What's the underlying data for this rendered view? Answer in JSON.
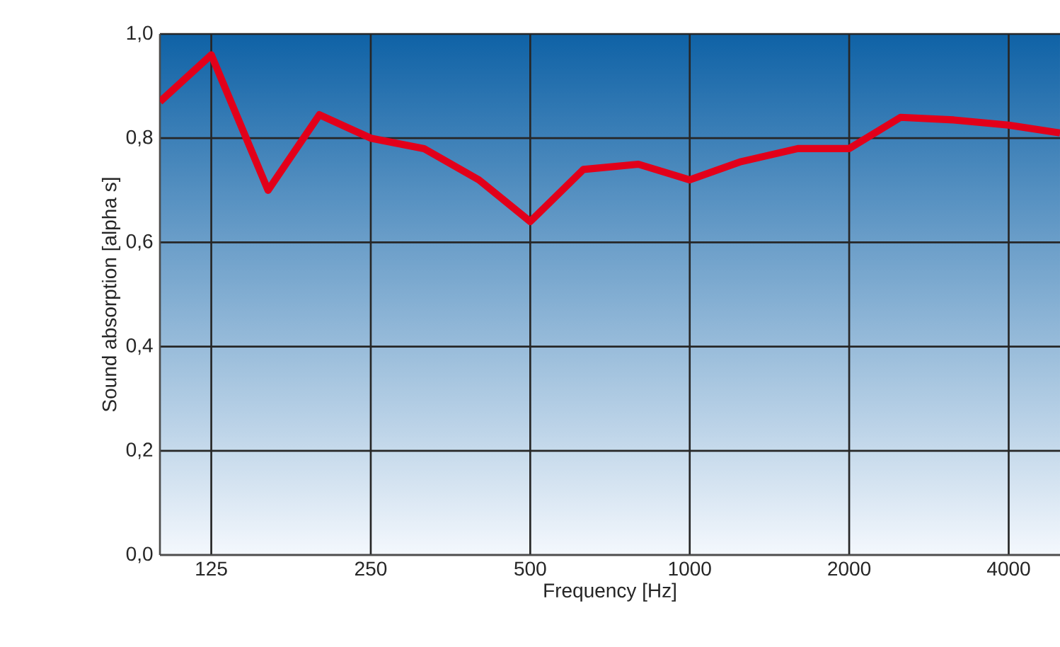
{
  "chart_data": {
    "type": "line",
    "xlabel": "Frequency [Hz]",
    "ylabel": "Sound absorption [alpha s]",
    "x": [
      100,
      125,
      160,
      200,
      250,
      315,
      400,
      500,
      630,
      800,
      1000,
      1250,
      1600,
      2000,
      2500,
      3150,
      4000,
      5000
    ],
    "series": [
      {
        "color": "#e2001a",
        "values": [
          0.87,
          0.96,
          0.7,
          0.845,
          0.8,
          0.78,
          0.72,
          0.64,
          0.74,
          0.75,
          0.72,
          0.755,
          0.78,
          0.78,
          0.84,
          0.835,
          0.825,
          0.81
        ]
      }
    ],
    "xlim": [
      100,
      5000
    ],
    "ylim": [
      0,
      1
    ],
    "xticks": [
      125,
      250,
      500,
      1000,
      2000,
      4000
    ],
    "yticks": [
      {
        "value": 0,
        "label": "0,0"
      },
      {
        "value": 0.2,
        "label": "0,2"
      },
      {
        "value": 0.4,
        "label": "0,4"
      },
      {
        "value": 0.6,
        "label": "0,6"
      },
      {
        "value": 0.8,
        "label": "0,8"
      },
      {
        "value": 1,
        "label": "1,0"
      }
    ],
    "log": "x",
    "grid": true
  }
}
